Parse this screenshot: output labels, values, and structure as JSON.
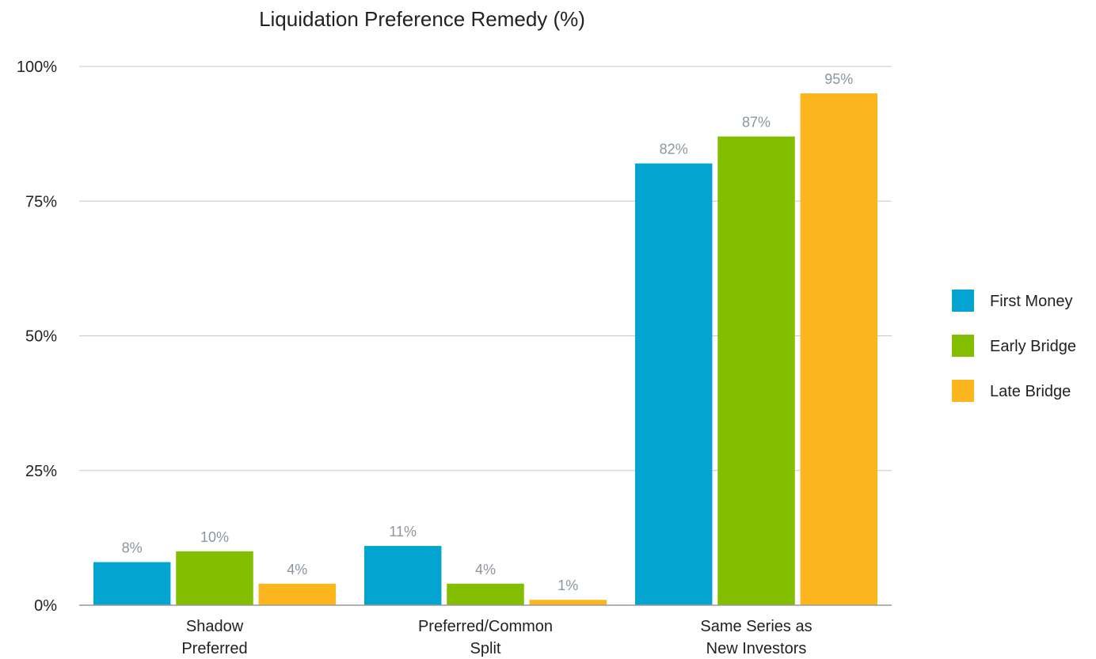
{
  "chart_data": {
    "type": "bar",
    "title": "Liquidation Preference Remedy (%)",
    "categories": [
      [
        "Shadow",
        "Preferred"
      ],
      [
        "Preferred/Common",
        "Split"
      ],
      [
        "Same Series as",
        "New Investors"
      ]
    ],
    "series": [
      {
        "name": "First Money",
        "color": "#03a4cf",
        "values": [
          8,
          11,
          82
        ],
        "labels": [
          "8%",
          "11%",
          "82%"
        ]
      },
      {
        "name": "Early Bridge",
        "color": "#82bd00",
        "values": [
          10,
          4,
          87
        ],
        "labels": [
          "10%",
          "4%",
          "87%"
        ]
      },
      {
        "name": "Late Bridge",
        "color": "#fdb51e",
        "values": [
          4,
          1,
          95
        ],
        "labels": [
          "4%",
          "1%",
          "95%"
        ]
      }
    ],
    "yticks": [
      0,
      25,
      50,
      75,
      100
    ],
    "ytick_labels": [
      "0%",
      "25%",
      "50%",
      "75%",
      "100%"
    ],
    "ylim": [
      0,
      100
    ],
    "grid": true,
    "legend_position": "right"
  }
}
